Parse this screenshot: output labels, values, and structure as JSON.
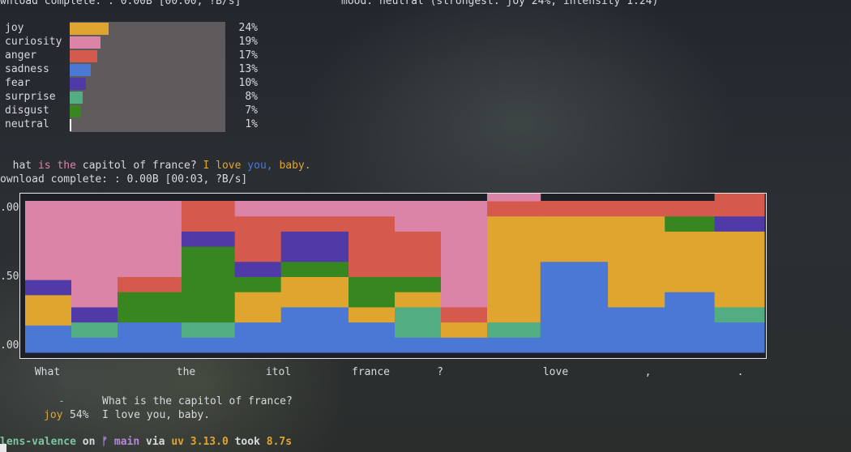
{
  "header": {
    "download1": "wnload complete: : 0.00B [00:00, ?B/s]",
    "mood": "mood: neutral (strongest: joy 24%, intensity 1.24)",
    "download2": "ownload complete: : 0.00B [00:03, ?B/s]"
  },
  "colors": {
    "joy": "#e0a52e",
    "curiosity": "#db84a8",
    "anger": "#d45a4d",
    "sadness": "#4a78d4",
    "fear": "#4f3aa8",
    "surprise": "#52ad82",
    "disgust": "#38861f",
    "neutral": "#ffffff"
  },
  "emotions": [
    {
      "label": "joy",
      "pct": "24%",
      "value": 24,
      "color": "#e0a52e"
    },
    {
      "label": "curiosity",
      "pct": "19%",
      "value": 19,
      "color": "#db84a8"
    },
    {
      "label": "anger",
      "pct": "17%",
      "value": 17,
      "color": "#d45a4d"
    },
    {
      "label": "sadness",
      "pct": "13%",
      "value": 13,
      "color": "#4a78d4"
    },
    {
      "label": "fear",
      "pct": "10%",
      "value": 10,
      "color": "#4f3aa8"
    },
    {
      "label": "surprise",
      "pct": "8%",
      "value": 8,
      "color": "#52ad82"
    },
    {
      "label": "disgust",
      "pct": "7%",
      "value": 7,
      "color": "#38861f"
    },
    {
      "label": "neutral",
      "pct": "1%",
      "value": 1,
      "color": "#ffffff"
    }
  ],
  "sentence": {
    "w1": "hat",
    "w2": "is",
    "w3": "the",
    "w4": "capitol",
    "w5": "of",
    "w6": "france?",
    "w7": "I",
    "w8": "love",
    "w9": "you,",
    "w10": "baby."
  },
  "chart_data": {
    "type": "area",
    "ytick_labels": [
      ".00",
      ".50",
      ".00"
    ],
    "ylim": [
      0,
      1
    ],
    "xtick_labels": [
      {
        "label": "What",
        "x": 0.5
      },
      {
        "label": "the",
        "x": 3.5
      },
      {
        "label": "itol",
        "x": 5.5
      },
      {
        "label": "france",
        "x": 7.5
      },
      {
        "label": "?",
        "x": 9
      },
      {
        "label": "love",
        "x": 11.5
      },
      {
        "label": ",",
        "x": 13.5
      },
      {
        "label": ".",
        "x": 15.5
      }
    ],
    "segments": [
      [
        0,
        1,
        [
          [
            "sadness",
            0.18
          ],
          [
            "surprise",
            0
          ],
          [
            "joy",
            0.2
          ],
          [
            "disgust",
            0
          ],
          [
            "fear",
            0.1
          ],
          [
            "anger",
            0
          ],
          [
            "curiosity",
            0.52
          ]
        ]
      ],
      [
        1,
        2,
        [
          [
            "sadness",
            0.1
          ],
          [
            "surprise",
            0.1
          ],
          [
            "joy",
            0
          ],
          [
            "disgust",
            0
          ],
          [
            "fear",
            0.1
          ],
          [
            "anger",
            0
          ],
          [
            "curiosity",
            0.7
          ]
        ]
      ],
      [
        2,
        3,
        [
          [
            "sadness",
            0.2
          ],
          [
            "surprise",
            0
          ],
          [
            "joy",
            0
          ],
          [
            "disgust",
            0.2
          ],
          [
            "fear",
            0
          ],
          [
            "anger",
            0.1
          ],
          [
            "curiosity",
            0.5
          ]
        ]
      ],
      [
        3,
        4,
        [
          [
            "sadness",
            0.1
          ],
          [
            "surprise",
            0.1
          ],
          [
            "joy",
            0
          ],
          [
            "disgust",
            0.5
          ],
          [
            "fear",
            0.1
          ],
          [
            "anger",
            0.2
          ],
          [
            "curiosity",
            0
          ]
        ]
      ],
      [
        4,
        5,
        [
          [
            "sadness",
            0.2
          ],
          [
            "surprise",
            0
          ],
          [
            "joy",
            0.2
          ],
          [
            "disgust",
            0.1
          ],
          [
            "fear",
            0.1
          ],
          [
            "anger",
            0.3
          ],
          [
            "curiosity",
            0.1
          ]
        ]
      ],
      [
        5,
        6,
        [
          [
            "sadness",
            0.3
          ],
          [
            "surprise",
            0
          ],
          [
            "joy",
            0.2
          ],
          [
            "disgust",
            0.1
          ],
          [
            "fear",
            0.2
          ],
          [
            "anger",
            0.1
          ],
          [
            "curiosity",
            0.1
          ]
        ]
      ],
      [
        6,
        7,
        [
          [
            "sadness",
            0.2
          ],
          [
            "surprise",
            0
          ],
          [
            "joy",
            0.1
          ],
          [
            "disgust",
            0.2
          ],
          [
            "fear",
            0
          ],
          [
            "anger",
            0.4
          ],
          [
            "curiosity",
            0.1
          ]
        ]
      ],
      [
        7,
        8,
        [
          [
            "sadness",
            0.1
          ],
          [
            "surprise",
            0.2
          ],
          [
            "joy",
            0.1
          ],
          [
            "disgust",
            0.1
          ],
          [
            "fear",
            0
          ],
          [
            "anger",
            0.3
          ],
          [
            "curiosity",
            0.2
          ]
        ]
      ],
      [
        8,
        9,
        [
          [
            "sadness",
            0.1
          ],
          [
            "surprise",
            0
          ],
          [
            "joy",
            0.1
          ],
          [
            "disgust",
            0
          ],
          [
            "fear",
            0
          ],
          [
            "anger",
            0.1
          ],
          [
            "curiosity",
            0.7
          ]
        ]
      ],
      [
        9,
        10,
        [
          [
            "sadness",
            0.1
          ],
          [
            "surprise",
            0.1
          ],
          [
            "joy",
            0.7
          ],
          [
            "disgust",
            0
          ],
          [
            "fear",
            0
          ],
          [
            "anger",
            0.1
          ],
          [
            "curiosity",
            0.1
          ]
        ]
      ],
      [
        10,
        11,
        [
          [
            "sadness",
            0.6
          ],
          [
            "surprise",
            0
          ],
          [
            "joy",
            0.3
          ],
          [
            "disgust",
            0
          ],
          [
            "fear",
            0
          ],
          [
            "anger",
            0.1
          ],
          [
            "curiosity",
            0
          ]
        ]
      ],
      [
        11,
        12,
        [
          [
            "sadness",
            0.3
          ],
          [
            "surprise",
            0
          ],
          [
            "joy",
            0.6
          ],
          [
            "disgust",
            0
          ],
          [
            "fear",
            0
          ],
          [
            "anger",
            0.1
          ],
          [
            "curiosity",
            0
          ]
        ]
      ],
      [
        12,
        13,
        [
          [
            "sadness",
            0.4
          ],
          [
            "surprise",
            0
          ],
          [
            "joy",
            0.4
          ],
          [
            "disgust",
            0.1
          ],
          [
            "fear",
            0
          ],
          [
            "anger",
            0.1
          ],
          [
            "curiosity",
            0
          ]
        ]
      ],
      [
        13,
        14,
        [
          [
            "sadness",
            0.2
          ],
          [
            "surprise",
            0.1
          ],
          [
            "joy",
            0.5
          ],
          [
            "disgust",
            0
          ],
          [
            "fear",
            0.1
          ],
          [
            "anger",
            0.2
          ],
          [
            "curiosity",
            0
          ]
        ]
      ]
    ],
    "segment_x": [
      0,
      0.65,
      1.3,
      2.2,
      2.95,
      3.6,
      4.55,
      5.2,
      5.85,
      6.5,
      7.25,
      8.2,
      9.0,
      9.7,
      10.4
    ]
  },
  "results": {
    "r1_label": "-",
    "r1_text": "What is the capitol of france?",
    "r2_label": "joy",
    "r2_pct": "54%",
    "r2_text": "I love you, baby."
  },
  "prompt": {
    "dir": "lens-valence",
    "on": " on ",
    "branch_icon": "ᚠ ",
    "branch": "main",
    "via": " via ",
    "uv": "uv 3.13.0",
    "took": " took ",
    "time": "8.7s"
  }
}
